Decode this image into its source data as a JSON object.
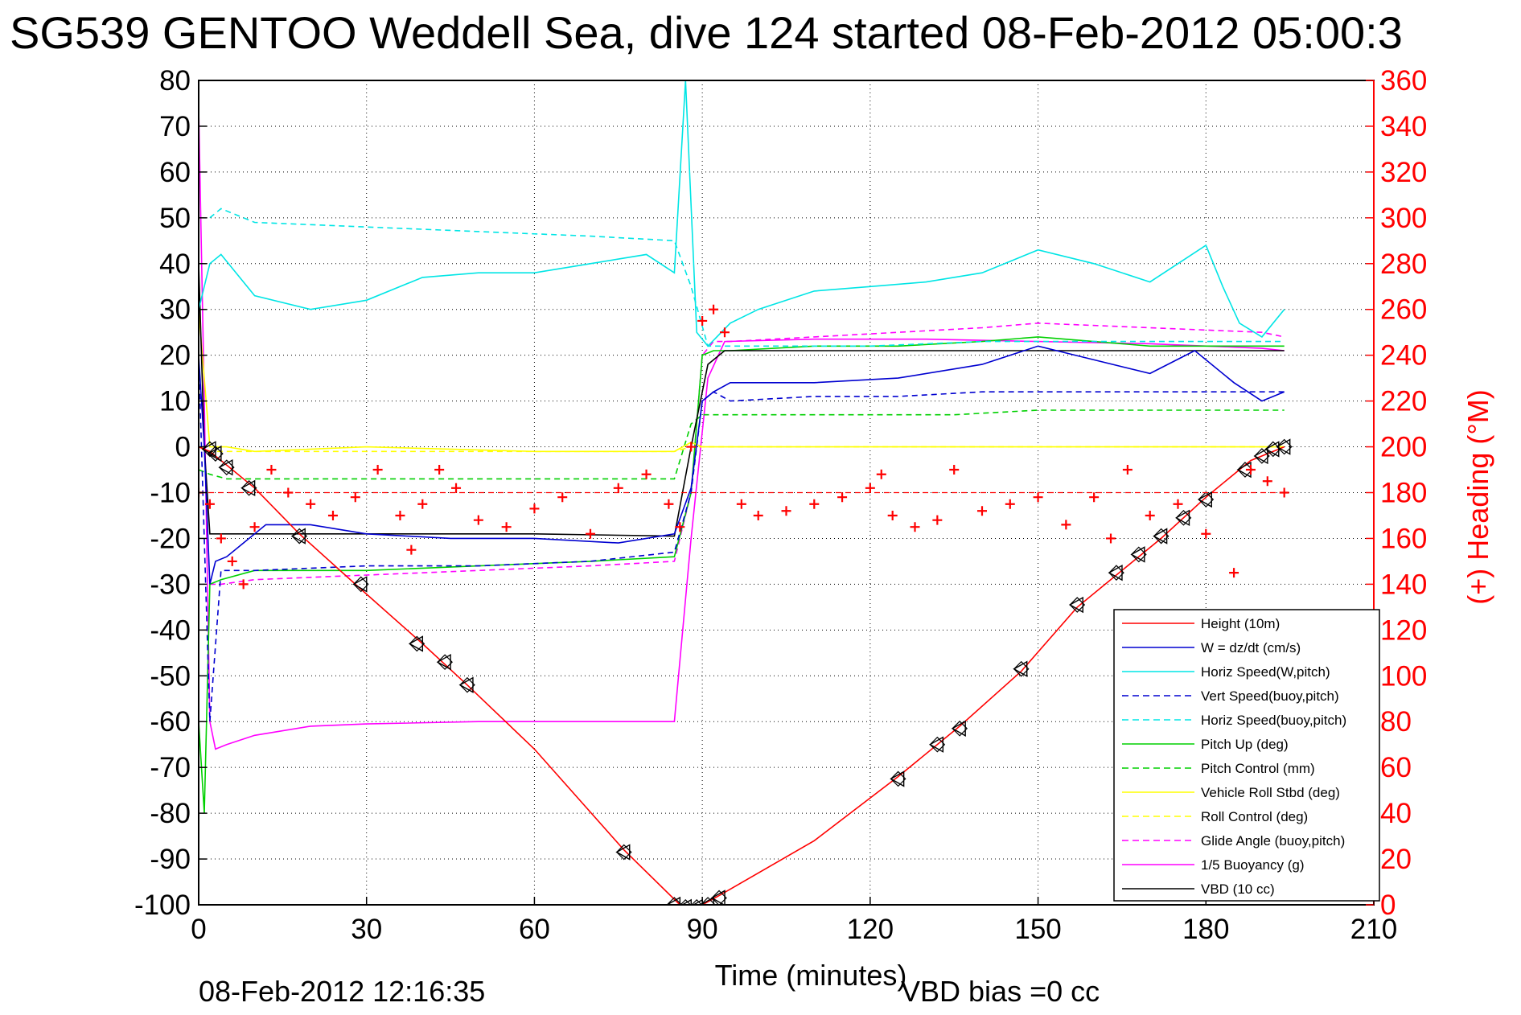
{
  "chart_data": {
    "type": "line",
    "title": "SG539 GENTOO Weddell Sea, dive 124 started 08-Feb-2012 05:00:3",
    "xlabel": "Time (minutes)",
    "ylabel_right": "(+) Heading (°M)",
    "xlim": [
      0,
      210
    ],
    "ylim": [
      -100,
      80
    ],
    "ylim_right": [
      0,
      360
    ],
    "x_ticks": [
      "0",
      "30",
      "60",
      "90",
      "120",
      "150",
      "180",
      "210"
    ],
    "y_ticks": [
      "80",
      "70",
      "60",
      "50",
      "40",
      "30",
      "20",
      "10",
      "0",
      "-10",
      "-20",
      "-30",
      "-40",
      "-50",
      "-60",
      "-70",
      "-80",
      "-90",
      "-100"
    ],
    "y_ticks_right": [
      "360",
      "340",
      "320",
      "300",
      "280",
      "260",
      "240",
      "220",
      "200",
      "180",
      "160",
      "140",
      "120",
      "100",
      "80",
      "60",
      "40",
      "20",
      "0"
    ],
    "grid": true,
    "legend_position": "bottom-right",
    "footer_left": "08-Feb-2012 12:16:35",
    "footer_right": "VBD bias =0 cc",
    "colors": {
      "red": "#ff0000",
      "blue": "#0000d0",
      "cyan": "#00e5e5",
      "green": "#00d000",
      "yellow": "#ffff00",
      "magenta": "#ff00ff",
      "black": "#000000"
    },
    "series": [
      {
        "name": "Height (10m)",
        "color": "#ff0000",
        "dash": "solid",
        "x": [
          0,
          2,
          5,
          10,
          18,
          28,
          40,
          48,
          60,
          76,
          86,
          90,
          93,
          110,
          125,
          136,
          147,
          157,
          165,
          172,
          180,
          188,
          194
        ],
        "y": [
          0,
          -1,
          -4,
          -9,
          -19,
          -30,
          -43,
          -52,
          -66,
          -88,
          -100,
          -100,
          -98,
          -86,
          -72,
          -61,
          -49,
          -35,
          -27,
          -20,
          -11,
          -3,
          0
        ]
      },
      {
        "name": "W = dz/dt (cm/s)",
        "color": "#0000d0",
        "dash": "solid",
        "x": [
          0,
          1,
          2,
          3,
          5,
          8,
          12,
          20,
          30,
          45,
          60,
          75,
          85,
          88,
          90,
          92,
          95,
          110,
          125,
          140,
          150,
          160,
          170,
          178,
          185,
          190,
          194
        ],
        "y": [
          20,
          0,
          -30,
          -25,
          -24,
          -21,
          -17,
          -17,
          -19,
          -20,
          -20,
          -21,
          -19,
          -9,
          10,
          12,
          14,
          14,
          15,
          18,
          22,
          19,
          16,
          21,
          14,
          10,
          12
        ]
      },
      {
        "name": "Horiz Speed(W,pitch)",
        "color": "#00e5e5",
        "dash": "solid",
        "x": [
          0,
          2,
          4,
          10,
          20,
          30,
          40,
          50,
          60,
          70,
          80,
          85,
          87,
          89,
          91,
          95,
          100,
          110,
          120,
          130,
          140,
          150,
          160,
          170,
          175,
          180,
          183,
          186,
          190,
          194
        ],
        "y": [
          30,
          40,
          42,
          33,
          30,
          32,
          37,
          38,
          38,
          40,
          42,
          38,
          80,
          25,
          22,
          27,
          30,
          34,
          35,
          36,
          38,
          43,
          40,
          36,
          40,
          44,
          35,
          27,
          24,
          30
        ]
      },
      {
        "name": "Vert Speed(buoy,pitch)",
        "color": "#0000d0",
        "dash": "dashed",
        "x": [
          0,
          2,
          4,
          10,
          30,
          50,
          70,
          85,
          88,
          90,
          92,
          95,
          110,
          125,
          140,
          150,
          170,
          190,
          194
        ],
        "y": [
          20,
          -60,
          -27,
          -27,
          -26,
          -26,
          -25,
          -23,
          -10,
          10,
          12,
          10,
          11,
          11,
          12,
          12,
          12,
          12,
          12
        ]
      },
      {
        "name": "Horiz Speed(buoy,pitch)",
        "color": "#00e5e5",
        "dash": "dashed",
        "x": [
          2,
          4,
          10,
          30,
          50,
          70,
          85,
          88,
          91,
          100,
          120,
          140,
          160,
          180,
          194
        ],
        "y": [
          50,
          52,
          49,
          48,
          47,
          46,
          45,
          35,
          22,
          22,
          22,
          23,
          23,
          23,
          23
        ]
      },
      {
        "name": "Pitch Up (deg)",
        "color": "#00d000",
        "dash": "solid",
        "x": [
          0,
          1,
          2,
          4,
          10,
          30,
          50,
          70,
          85,
          88,
          90,
          92,
          95,
          110,
          125,
          140,
          150,
          170,
          190,
          194
        ],
        "y": [
          -60,
          -80,
          -30,
          -29,
          -27,
          -27,
          -26,
          -25,
          -24,
          -10,
          20,
          21,
          21,
          22,
          22,
          23,
          24,
          22,
          22,
          22
        ]
      },
      {
        "name": "Pitch Control (mm)",
        "color": "#00d000",
        "dash": "dashed",
        "x": [
          0,
          2,
          5,
          10,
          30,
          60,
          85,
          88,
          90,
          92,
          95,
          120,
          135,
          150,
          170,
          190,
          194
        ],
        "y": [
          -5,
          -6,
          -7,
          -7,
          -7,
          -7,
          -7,
          5,
          7,
          7,
          7,
          7,
          7,
          8,
          8,
          8,
          8
        ]
      },
      {
        "name": "Vehicle Roll Stbd (deg)",
        "color": "#ffff00",
        "dash": "solid",
        "x": [
          0,
          2,
          5,
          10,
          30,
          60,
          85,
          88,
          90,
          95,
          120,
          150,
          180,
          194
        ],
        "y": [
          30,
          0,
          0,
          -1,
          0,
          -1,
          -1,
          1,
          0,
          0,
          0,
          0,
          0,
          0
        ]
      },
      {
        "name": "Roll Control (deg)",
        "color": "#ffff00",
        "dash": "dashed",
        "x": [
          0,
          2,
          5,
          30,
          60,
          85,
          88,
          90,
          95,
          120,
          150,
          180,
          194
        ],
        "y": [
          0,
          -1,
          -1,
          -1,
          -1,
          -1,
          0,
          0,
          0,
          0,
          0,
          0,
          0
        ]
      },
      {
        "name": "Glide Angle (buoy,pitch)",
        "color": "#ff00ff",
        "dash": "dashed",
        "x": [
          2,
          4,
          10,
          30,
          50,
          70,
          85,
          88,
          90,
          92,
          95,
          110,
          125,
          140,
          150,
          170,
          190,
          194
        ],
        "y": [
          -30,
          -30,
          -29,
          -28,
          -27,
          -26,
          -25,
          -10,
          20,
          23,
          23,
          24,
          25,
          26,
          27,
          26,
          25,
          24
        ]
      },
      {
        "name": "1/5 Buoyancy (g)",
        "color": "#ff00ff",
        "dash": "solid",
        "x": [
          0,
          1,
          2,
          3,
          5,
          10,
          20,
          30,
          50,
          70,
          85,
          88,
          91,
          94,
          110,
          130,
          150,
          170,
          190,
          194
        ],
        "y": [
          74,
          10,
          -60,
          -66,
          -65,
          -63,
          -61,
          -60.5,
          -60,
          -60,
          -60,
          -20,
          15,
          23,
          23.5,
          23.5,
          23,
          22.5,
          21.5,
          21
        ]
      },
      {
        "name": "VBD (10 cc)",
        "color": "#000000",
        "dash": "solid",
        "x": [
          0,
          1,
          2,
          5,
          30,
          60,
          85,
          88,
          91,
          94,
          120,
          150,
          170,
          190,
          194
        ],
        "y": [
          40,
          0,
          -19,
          -19,
          -19,
          -19,
          -19.5,
          0,
          18,
          21,
          21,
          21,
          21,
          21,
          21
        ]
      }
    ],
    "heading_series": {
      "name": "Heading",
      "axis": "right",
      "marker": "+",
      "color": "#ff0000",
      "x": [
        0,
        2,
        4,
        6,
        8,
        10,
        13,
        16,
        20,
        24,
        28,
        32,
        36,
        38,
        40,
        43,
        46,
        50,
        55,
        60,
        65,
        70,
        75,
        80,
        84,
        86,
        88,
        90,
        92,
        94,
        97,
        100,
        105,
        110,
        115,
        120,
        122,
        124,
        128,
        132,
        135,
        140,
        145,
        150,
        155,
        160,
        163,
        166,
        170,
        175,
        180,
        185,
        188,
        191,
        194
      ],
      "y": [
        180,
        175,
        160,
        150,
        140,
        165,
        190,
        180,
        175,
        170,
        178,
        190,
        170,
        155,
        175,
        190,
        182,
        168,
        165,
        173,
        178,
        162,
        182,
        188,
        175,
        165,
        200,
        255,
        260,
        250,
        175,
        170,
        172,
        175,
        178,
        182,
        188,
        170,
        165,
        168,
        190,
        172,
        175,
        178,
        166,
        178,
        160,
        190,
        170,
        175,
        162,
        145,
        190,
        185,
        180
      ]
    },
    "heading_ref": {
      "color": "#ff0000",
      "dash": "dashed",
      "y": 180
    },
    "markers": {
      "shape": "triangle-diamond",
      "color": "#000000",
      "x": [
        2,
        3,
        5,
        9,
        18,
        29,
        39,
        44,
        48,
        76,
        85,
        87,
        89,
        91,
        93,
        125,
        132,
        136,
        147,
        157,
        164,
        168,
        172,
        176,
        180,
        187,
        190,
        192,
        194
      ],
      "y": [
        -0.5,
        -1.5,
        -4.5,
        -9,
        -19.5,
        -30,
        -43,
        -47,
        -52,
        -88.5,
        -100,
        -100.5,
        -100.5,
        -100,
        -98.5,
        -72.5,
        -65,
        -61.5,
        -48.5,
        -34.5,
        -27.5,
        -23.5,
        -19.5,
        -15.5,
        -11.5,
        -5,
        -2,
        -0.5,
        0
      ]
    }
  }
}
